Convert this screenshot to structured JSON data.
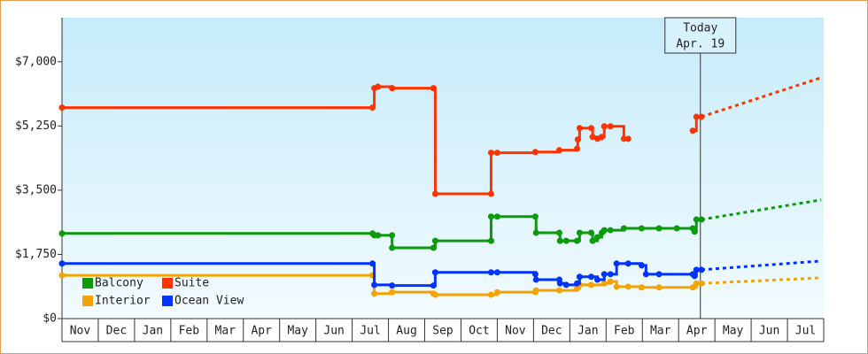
{
  "chart_data": {
    "type": "step-line",
    "xlim": [
      0,
      21
    ],
    "ylim": [
      0,
      8200
    ],
    "yticks": [
      {
        "value": 0,
        "label": "$0"
      },
      {
        "value": 1750,
        "label": "$1,750"
      },
      {
        "value": 3500,
        "label": "$3,500"
      },
      {
        "value": 5250,
        "label": "$5,250"
      },
      {
        "value": 7000,
        "label": "$7,000"
      }
    ],
    "months": [
      "Nov",
      "Dec",
      "Jan",
      "Feb",
      "Mar",
      "Apr",
      "May",
      "Jun",
      "Jul",
      "Aug",
      "Sep",
      "Oct",
      "Nov",
      "Dec",
      "Jan",
      "Feb",
      "Mar",
      "Apr",
      "May",
      "Jun",
      "Jul"
    ],
    "today": {
      "x": 17.6,
      "label": "Today",
      "date": "Apr. 19"
    },
    "series": [
      {
        "name": "Balcony",
        "color": "#0a9a0a",
        "x": [
          0,
          8.56,
          8.61,
          8.71,
          9.1,
          9.1,
          10.24,
          10.29,
          11.83,
          11.83,
          12.0,
          13.05,
          13.07,
          13.71,
          13.73,
          13.9,
          14.2,
          14.27,
          14.59,
          14.63,
          14.76,
          14.88,
          14.95,
          15.12,
          15.49,
          15.98,
          16.46,
          16.95,
          17.39,
          17.44,
          17.49,
          17.63
        ],
        "values": [
          2320,
          2320,
          2270,
          2270,
          2270,
          1930,
          1930,
          2120,
          2120,
          2780,
          2780,
          2780,
          2340,
          2340,
          2120,
          2120,
          2120,
          2340,
          2340,
          2120,
          2220,
          2340,
          2410,
          2410,
          2460,
          2460,
          2460,
          2460,
          2460,
          2370,
          2700,
          2700
        ],
        "forecast": {
          "x": [
            17.63,
            20.93
          ],
          "values": [
            2700,
            3235
          ]
        }
      },
      {
        "name": "Suite",
        "color": "#ff3300",
        "x": [
          0,
          8.56,
          8.61,
          8.71,
          9.1,
          10.24,
          10.29,
          11.83,
          11.83,
          12.0,
          13.05,
          13.71,
          14.2,
          14.22,
          14.27,
          14.59,
          14.63,
          14.76,
          14.88,
          14.95,
          15.12,
          15.49,
          15.61,
          null,
          17.39,
          17.49,
          17.63
        ],
        "values": [
          5750,
          5750,
          6280,
          6320,
          6280,
          6280,
          3400,
          3400,
          4520,
          4520,
          4540,
          4590,
          4630,
          4880,
          5190,
          5190,
          4950,
          4900,
          4950,
          5240,
          5240,
          4900,
          4900,
          null,
          5120,
          5500,
          5500
        ],
        "forecast": {
          "x": [
            17.63,
            20.93
          ],
          "values": [
            5500,
            6566
          ]
        }
      },
      {
        "name": "Interior",
        "color": "#f5a300",
        "x": [
          0,
          8.56,
          8.61,
          9.1,
          10.24,
          10.29,
          11.83,
          12.0,
          13.05,
          13.07,
          13.71,
          14.2,
          14.27,
          14.59,
          14.95,
          15.12,
          15.29,
          15.61,
          15.98,
          16.46,
          17.39,
          17.49,
          17.63
        ],
        "values": [
          1180,
          1180,
          680,
          720,
          680,
          650,
          650,
          720,
          720,
          770,
          770,
          820,
          920,
          920,
          960,
          1010,
          870,
          870,
          850,
          850,
          850,
          960,
          960
        ],
        "forecast": {
          "x": [
            17.63,
            20.93
          ],
          "values": [
            960,
            1110
          ]
        }
      },
      {
        "name": "Ocean View",
        "color": "#0033ff",
        "x": [
          0,
          8.56,
          8.61,
          9.1,
          10.24,
          10.29,
          11.83,
          12.0,
          13.05,
          13.07,
          13.71,
          13.73,
          13.9,
          14.2,
          14.27,
          14.59,
          14.76,
          14.95,
          15.12,
          15.29,
          15.61,
          15.98,
          16.1,
          16.46,
          17.39,
          17.44,
          17.49,
          17.63
        ],
        "values": [
          1500,
          1500,
          920,
          900,
          900,
          1260,
          1260,
          1260,
          1210,
          1060,
          1060,
          960,
          920,
          960,
          1140,
          1140,
          1060,
          1210,
          1210,
          1500,
          1500,
          1450,
          1210,
          1210,
          1210,
          1160,
          1330,
          1330
        ],
        "forecast": {
          "x": [
            17.63,
            20.93
          ],
          "values": [
            1330,
            1570
          ]
        }
      }
    ]
  }
}
